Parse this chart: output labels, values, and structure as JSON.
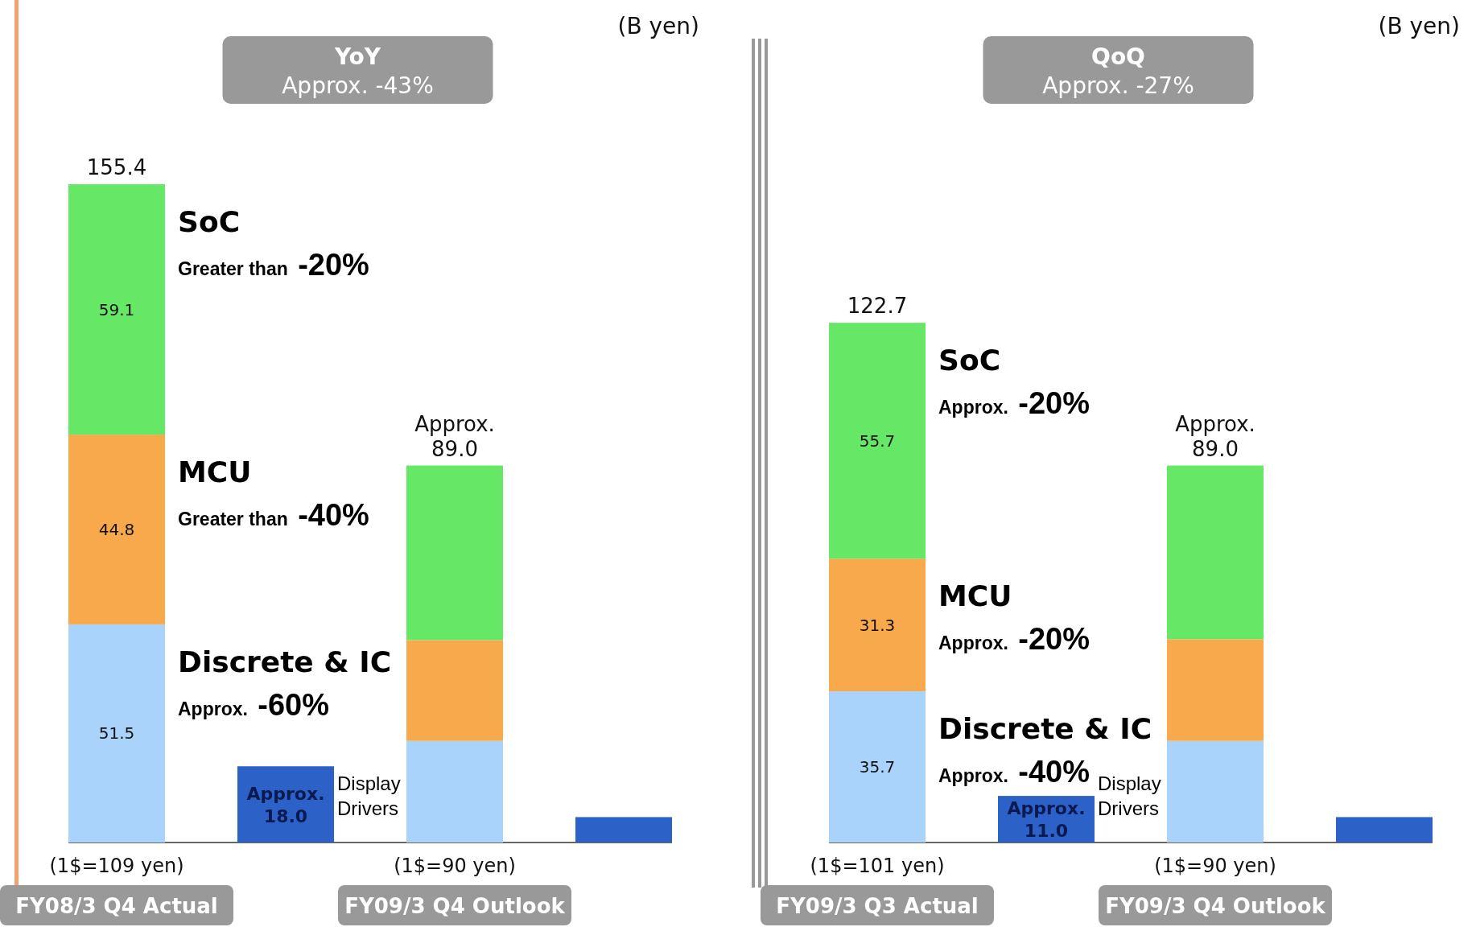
{
  "chart_data": [
    {
      "type": "bar",
      "stacked": true,
      "title": "YoY",
      "subtitle": "Approx. -43%",
      "categories": [
        "FY08/3 Q4 Actual",
        null,
        "FY09/3 Q4 Outlook",
        null
      ],
      "tick_labels": "x",
      "series": [
        {
          "name": "Discrete & IC",
          "color": "#a9d3fa",
          "values": [
            51.5,
            null,
            24.0,
            null
          ],
          "value_labels": [
            "51.5",
            null,
            null,
            null
          ]
        },
        {
          "name": "MCU",
          "color": "#f8a94c",
          "values": [
            44.8,
            null,
            23.8,
            null
          ],
          "value_labels": [
            "44.8",
            null,
            null,
            null
          ]
        },
        {
          "name": "SoC",
          "color": "#66e866",
          "values": [
            59.1,
            null,
            41.2,
            null
          ],
          "value_labels": [
            "59.1",
            null,
            null,
            null
          ]
        },
        {
          "name": "Display Drivers",
          "color": "#2c62c8",
          "values": [
            null,
            18.0,
            null,
            6.0
          ],
          "value_labels": [
            null,
            "Approx. 18.0",
            null,
            null
          ]
        }
      ],
      "totals": [
        "155.4",
        null,
        "Approx. 89.0",
        null
      ],
      "annotations": [
        "(B yen)",
        "(1$=109 yen)",
        "(1$=90 yen)",
        "Greater than -20%",
        "Greater than -40%",
        "Approx. -60%"
      ]
    },
    {
      "type": "bar",
      "stacked": true,
      "title": "QoQ",
      "subtitle": "Approx. -27%",
      "categories": [
        "FY09/3 Q3 Actual",
        null,
        "FY09/3 Q4 Outlook",
        null
      ],
      "tick_labels": "x",
      "series": [
        {
          "name": "Discrete & IC",
          "color": "#a9d3fa",
          "values": [
            35.7,
            null,
            24.0,
            null
          ],
          "value_labels": [
            "35.7",
            null,
            null,
            null
          ]
        },
        {
          "name": "MCU",
          "color": "#f8a94c",
          "values": [
            31.3,
            null,
            24.0,
            null
          ],
          "value_labels": [
            "31.3",
            null,
            null,
            null
          ]
        },
        {
          "name": "SoC",
          "color": "#66e866",
          "values": [
            55.7,
            null,
            41.0,
            null
          ],
          "value_labels": [
            "55.7",
            null,
            null,
            null
          ]
        },
        {
          "name": "Display Drivers",
          "color": "#2c62c8",
          "values": [
            null,
            11.0,
            null,
            6.0
          ],
          "value_labels": [
            null,
            "Approx. 11.0",
            null,
            null
          ]
        }
      ],
      "totals": [
        "122.7",
        null,
        "Approx. 89.0",
        null
      ],
      "annotations": [
        "(B yen)",
        "(1$=101 yen)",
        "(1$=90 yen)",
        "Approx. -20%",
        "Approx. -20%",
        "Approx. -40%"
      ]
    }
  ]
}
